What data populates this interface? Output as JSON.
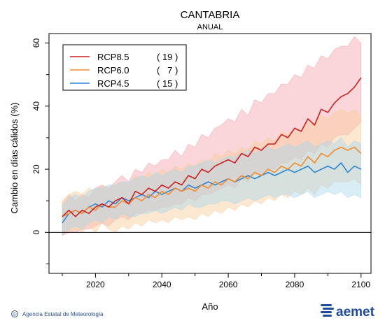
{
  "chart_data": {
    "type": "line",
    "title": "CANTABRIA",
    "subtitle": "ANUAL",
    "xlabel": "Año",
    "ylabel": "Cambio en días cálidos (%)",
    "xlim": [
      2006,
      2103
    ],
    "ylim": [
      -13,
      63
    ],
    "xticks": [
      2020,
      2040,
      2060,
      2080,
      2100
    ],
    "yticks": [
      0,
      20,
      40,
      60
    ],
    "zero_line": true,
    "legend_position": "top-left",
    "x": [
      2010,
      2012,
      2014,
      2016,
      2018,
      2020,
      2022,
      2024,
      2026,
      2028,
      2030,
      2032,
      2034,
      2036,
      2038,
      2040,
      2042,
      2044,
      2046,
      2048,
      2050,
      2052,
      2054,
      2056,
      2058,
      2060,
      2062,
      2064,
      2066,
      2068,
      2070,
      2072,
      2074,
      2076,
      2078,
      2080,
      2082,
      2084,
      2086,
      2088,
      2090,
      2092,
      2094,
      2096,
      2098,
      2100
    ],
    "series": [
      {
        "name": "RCP8.5",
        "count": "( 19 )",
        "color": "#cc1f1f",
        "band_color": "#f4a3ad",
        "values": [
          5,
          7,
          5,
          7,
          6,
          8,
          9,
          8,
          10,
          11,
          9,
          13,
          12,
          14,
          13,
          15,
          14,
          16,
          15,
          18,
          17,
          20,
          19,
          21,
          22,
          23,
          22,
          25,
          24,
          27,
          26,
          28,
          28,
          31,
          30,
          33,
          32,
          36,
          34,
          39,
          38,
          41,
          43,
          44,
          46,
          49
        ],
        "lower": [
          -1,
          0,
          0,
          1,
          1,
          2,
          3,
          2,
          4,
          5,
          4,
          6,
          6,
          7,
          7,
          8,
          8,
          9,
          9,
          11,
          10,
          12,
          12,
          13,
          14,
          15,
          14,
          17,
          16,
          19,
          18,
          20,
          20,
          22,
          22,
          24,
          23,
          26,
          25,
          28,
          27,
          30,
          31,
          31,
          33,
          35
        ],
        "upper": [
          9,
          12,
          10,
          12,
          11,
          14,
          15,
          14,
          16,
          18,
          16,
          20,
          19,
          22,
          21,
          23,
          23,
          26,
          24,
          28,
          27,
          31,
          30,
          33,
          34,
          36,
          35,
          39,
          37,
          42,
          41,
          44,
          44,
          47,
          47,
          50,
          49,
          53,
          52,
          56,
          55,
          58,
          59,
          59,
          62,
          60
        ]
      },
      {
        "name": "RCP6.0",
        "count": "(   7 )",
        "color": "#f08c30",
        "band_color": "#f9cd9a",
        "values": [
          5,
          6,
          7,
          6,
          8,
          7,
          9,
          8,
          8,
          10,
          9,
          11,
          10,
          12,
          11,
          13,
          12,
          14,
          13,
          14,
          13,
          15,
          14,
          16,
          15,
          17,
          16,
          18,
          17,
          19,
          18,
          20,
          19,
          21,
          20,
          22,
          21,
          24,
          22,
          25,
          24,
          26,
          27,
          26,
          27,
          25
        ],
        "lower": [
          1,
          0,
          1,
          0,
          2,
          0,
          3,
          1,
          0,
          2,
          1,
          3,
          2,
          4,
          3,
          4,
          3,
          5,
          4,
          5,
          4,
          6,
          5,
          7,
          6,
          8,
          7,
          9,
          8,
          10,
          9,
          11,
          10,
          12,
          11,
          13,
          12,
          14,
          12,
          15,
          14,
          16,
          16,
          16,
          17,
          15
        ],
        "upper": [
          10,
          12,
          13,
          12,
          14,
          13,
          15,
          14,
          15,
          16,
          15,
          18,
          17,
          19,
          18,
          20,
          19,
          21,
          20,
          22,
          21,
          23,
          22,
          25,
          24,
          26,
          25,
          27,
          26,
          29,
          28,
          30,
          29,
          32,
          31,
          33,
          32,
          35,
          34,
          37,
          36,
          38,
          39,
          38,
          39,
          37
        ]
      },
      {
        "name": "RCP4.5",
        "count": "( 15 )",
        "color": "#2f86d2",
        "band_color": "#a9d7ea",
        "values": [
          3,
          6,
          7,
          6,
          8,
          9,
          8,
          10,
          9,
          11,
          10,
          11,
          12,
          11,
          13,
          12,
          13,
          14,
          13,
          15,
          14,
          15,
          16,
          15,
          16,
          17,
          16,
          17,
          18,
          17,
          18,
          19,
          18,
          19,
          20,
          19,
          20,
          21,
          19,
          20,
          21,
          20,
          22,
          19,
          21,
          20
        ],
        "lower": [
          -1,
          1,
          2,
          1,
          3,
          4,
          3,
          5,
          4,
          6,
          5,
          5,
          6,
          6,
          7,
          6,
          7,
          8,
          7,
          9,
          8,
          8,
          9,
          9,
          10,
          10,
          9,
          10,
          11,
          10,
          11,
          12,
          11,
          12,
          12,
          11,
          12,
          13,
          11,
          12,
          13,
          12,
          13,
          11,
          12,
          11
        ],
        "upper": [
          8,
          11,
          12,
          11,
          13,
          14,
          14,
          15,
          15,
          16,
          16,
          17,
          18,
          17,
          19,
          18,
          19,
          20,
          19,
          21,
          21,
          22,
          23,
          22,
          23,
          24,
          24,
          25,
          26,
          25,
          26,
          27,
          26,
          27,
          28,
          27,
          28,
          29,
          27,
          28,
          29,
          28,
          30,
          27,
          29,
          28
        ]
      }
    ]
  },
  "footer": {
    "credit": "Agencia Estatal de Meteorología",
    "copyright_symbol": "©",
    "logo_text": "aemet"
  }
}
